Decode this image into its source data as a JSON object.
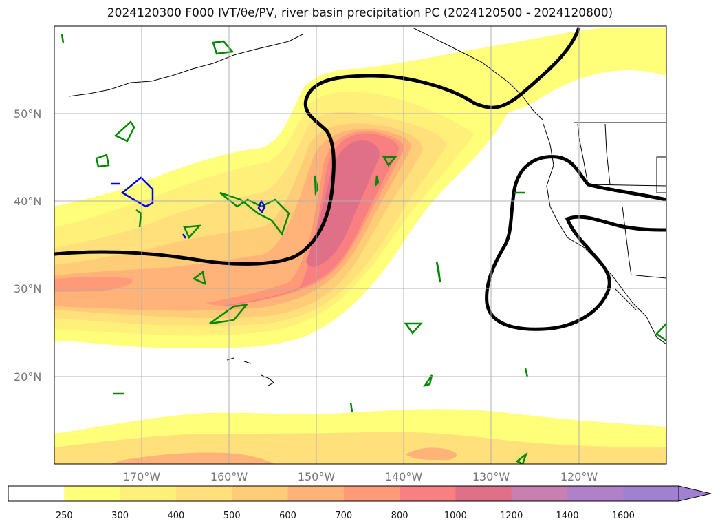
{
  "title": "2024120300 F000 IVT/θe/PV, river basin precipitation PC (2024120500 - 2024120800)",
  "map": {
    "lat_labels": [
      "50°N",
      "40°N",
      "30°N",
      "20°N"
    ],
    "lon_labels": [
      "170°W",
      "160°W",
      "150°W",
      "140°W",
      "130°W",
      "120°W"
    ],
    "ivt_levels": [
      250,
      300,
      400,
      500,
      600,
      700,
      800,
      1000,
      1200,
      1400,
      1600
    ],
    "colors": {
      "ivt": [
        "#ffffff",
        "#ffff7a",
        "#fff07a",
        "#ffe07a",
        "#ffcc78",
        "#ffb378",
        "#ff9a78",
        "#f88080",
        "#e07088",
        "#c880b0",
        "#b080c8",
        "#a080d0"
      ],
      "theta_e_contour": "#000000",
      "pv_green": "#008800",
      "pv_blue": "#0000ee"
    }
  },
  "colorbar": {
    "tick_labels": [
      "250",
      "300",
      "400",
      "500",
      "600",
      "700",
      "800",
      "1000",
      "1200",
      "1400",
      "1600"
    ],
    "extend": "max"
  }
}
